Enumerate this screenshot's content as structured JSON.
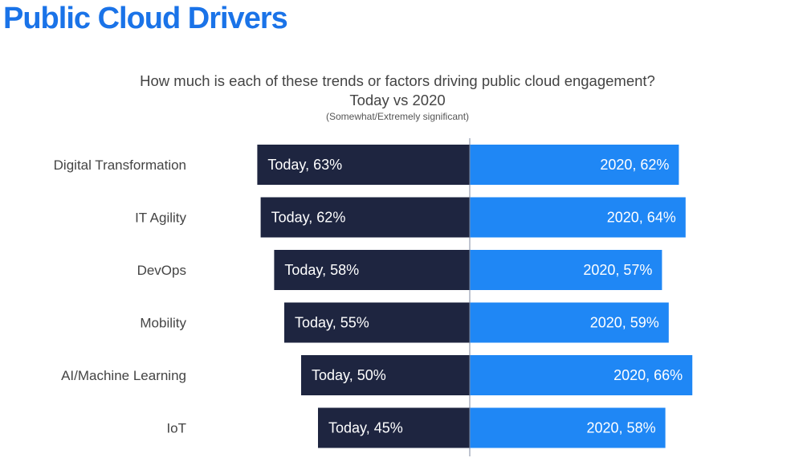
{
  "title": "Public Cloud Drivers",
  "colors": {
    "title": "#1a73e8",
    "today_bar": "#1e2540",
    "y2020_bar": "#1f87f5",
    "divider": "#7f8aa0"
  },
  "chart_data": {
    "type": "bar",
    "orientation": "horizontal-diverging",
    "title": "How much is each of these trends or factors driving public cloud engagement?",
    "subtitle": "Today vs 2020",
    "note": "(Somewhat/Extremely significant)",
    "categories": [
      "Digital Transformation",
      "IT Agility",
      "DevOps",
      "Mobility",
      "AI/Machine Learning",
      "IoT"
    ],
    "series": [
      {
        "name": "Today",
        "values": [
          63,
          62,
          58,
          55,
          50,
          45
        ],
        "labels": [
          "Today, 63%",
          "Today, 62%",
          "Today, 58%",
          "Today,  55%",
          "Today, 50%",
          "Today, 45%"
        ],
        "side": "left"
      },
      {
        "name": "2020",
        "values": [
          62,
          64,
          57,
          59,
          66,
          58
        ],
        "labels": [
          "2020, 62%",
          "2020, 64%",
          "2020, 57%",
          "2020, 59%",
          "2020, 66%",
          "2020, 58%"
        ],
        "side": "right"
      }
    ],
    "unit": "%",
    "legend": "none",
    "grid": false
  }
}
